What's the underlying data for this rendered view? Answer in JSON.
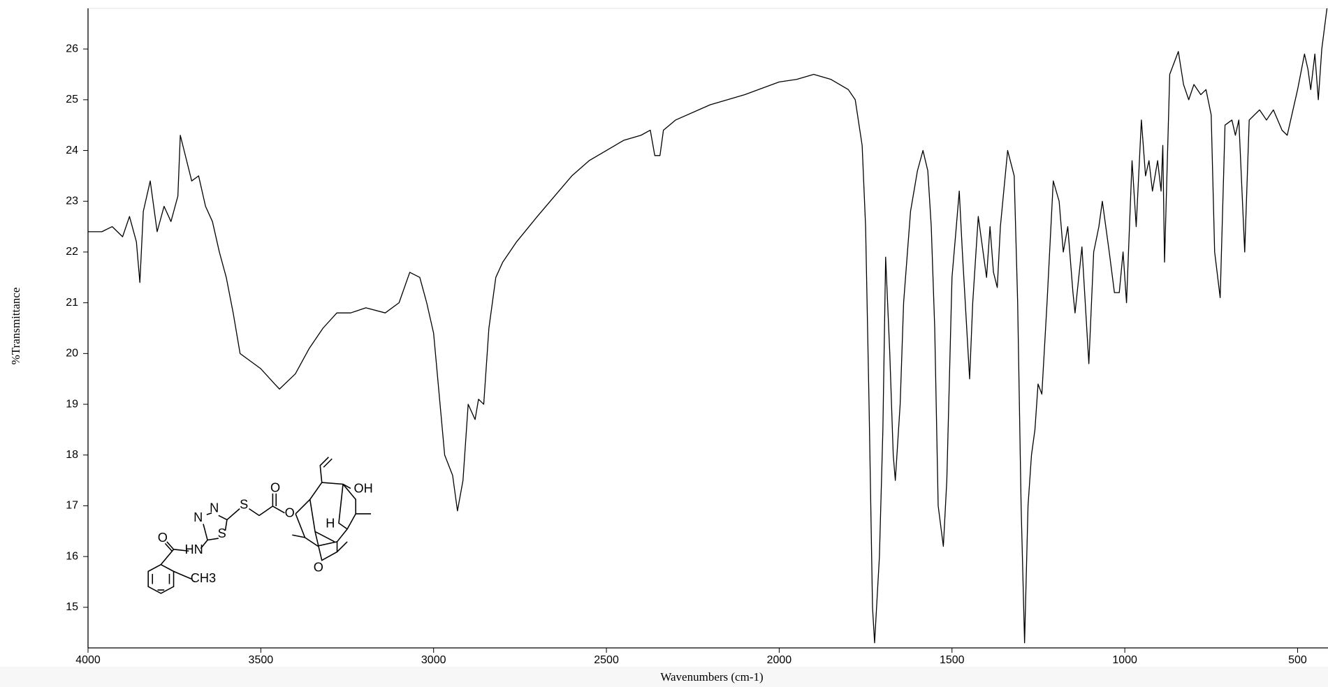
{
  "chart_data": {
    "type": "line",
    "x_label": "Wavenumbers (cm-1)",
    "y_label": "%Transmittance",
    "color": "#000000",
    "xlim": [
      4000,
      412
    ],
    "ylim": [
      14.2,
      26.8
    ],
    "xticks": [
      4000,
      3500,
      3000,
      2500,
      2000,
      1500,
      1000,
      500
    ],
    "yticks": [
      15,
      16,
      17,
      18,
      19,
      20,
      21,
      22,
      23,
      24,
      25,
      26
    ],
    "structure_labels": [
      "N",
      "N",
      "S",
      "S",
      "HN",
      "O",
      "CH3",
      "O",
      "O",
      "OH",
      "H",
      "O"
    ],
    "x": [
      4000,
      3960,
      3930,
      3900,
      3880,
      3860,
      3850,
      3840,
      3820,
      3800,
      3780,
      3760,
      3740,
      3733,
      3700,
      3680,
      3660,
      3640,
      3620,
      3600,
      3580,
      3560,
      3540,
      3500,
      3460,
      3446,
      3400,
      3360,
      3320,
      3280,
      3240,
      3196,
      3140,
      3100,
      3069,
      3040,
      3020,
      3000,
      2980,
      2968,
      2945,
      2931,
      2915,
      2900,
      2880,
      2870,
      2855,
      2840,
      2820,
      2800,
      2760,
      2700,
      2650,
      2600,
      2550,
      2500,
      2450,
      2400,
      2373,
      2360,
      2345,
      2335,
      2300,
      2200,
      2100,
      2000,
      1950,
      1900,
      1850,
      1800,
      1780,
      1760,
      1750,
      1740,
      1730,
      1724,
      1710,
      1700,
      1692,
      1680,
      1670,
      1664,
      1650,
      1640,
      1620,
      1600,
      1584,
      1570,
      1560,
      1550,
      1540,
      1525,
      1515,
      1500,
      1490,
      1479,
      1470,
      1449,
      1440,
      1424,
      1410,
      1400,
      1390,
      1380,
      1369,
      1360,
      1339,
      1320,
      1310,
      1300,
      1290,
      1280,
      1270,
      1260,
      1251,
      1240,
      1225,
      1207,
      1190,
      1178,
      1165,
      1150,
      1144,
      1124,
      1104,
      1090,
      1075,
      1065,
      1045,
      1030,
      1016,
      1005,
      995,
      979,
      967,
      952,
      940,
      930,
      920,
      905,
      895,
      890,
      885,
      870,
      845,
      830,
      815,
      800,
      780,
      765,
      750,
      740,
      724,
      710,
      690,
      680,
      670,
      653,
      640,
      610,
      590,
      570,
      545,
      530,
      500,
      480,
      470,
      462,
      450,
      440,
      430,
      415
    ],
    "values": [
      22.4,
      22.4,
      22.5,
      22.3,
      22.7,
      22.2,
      21.4,
      22.8,
      23.4,
      22.4,
      22.9,
      22.6,
      23.1,
      24.3,
      23.4,
      23.5,
      22.9,
      22.6,
      22.0,
      21.5,
      20.8,
      20.0,
      19.9,
      19.7,
      19.4,
      19.3,
      19.6,
      20.1,
      20.5,
      20.8,
      20.8,
      20.9,
      20.8,
      21.0,
      21.6,
      21.5,
      21.0,
      20.4,
      18.9,
      18.0,
      17.6,
      16.9,
      17.5,
      19.0,
      18.7,
      19.1,
      19.0,
      20.5,
      21.5,
      21.8,
      22.2,
      22.7,
      23.1,
      23.5,
      23.8,
      24.0,
      24.2,
      24.3,
      24.4,
      23.9,
      23.9,
      24.4,
      24.6,
      24.9,
      25.1,
      25.35,
      25.4,
      25.5,
      25.4,
      25.2,
      25.0,
      24.1,
      22.5,
      19.0,
      15.0,
      14.3,
      16.0,
      18.5,
      21.9,
      20.0,
      18.0,
      17.5,
      19.0,
      21.0,
      22.8,
      23.6,
      24.0,
      23.6,
      22.5,
      20.5,
      17.0,
      16.2,
      17.5,
      21.5,
      22.3,
      23.2,
      22.0,
      19.5,
      21.0,
      22.7,
      22.0,
      21.5,
      22.5,
      21.6,
      21.3,
      22.5,
      24.0,
      23.5,
      21.0,
      17.0,
      14.3,
      17.0,
      18.0,
      18.5,
      19.4,
      19.2,
      21.0,
      23.4,
      23.0,
      22.0,
      22.5,
      21.2,
      20.8,
      22.1,
      19.8,
      22.0,
      22.5,
      23.0,
      22.0,
      21.2,
      21.2,
      22.0,
      21.0,
      23.8,
      22.5,
      24.6,
      23.5,
      23.8,
      23.2,
      23.8,
      23.2,
      24.1,
      21.8,
      25.5,
      25.95,
      25.3,
      25.0,
      25.3,
      25.1,
      25.2,
      24.7,
      22.0,
      21.1,
      24.5,
      24.6,
      24.3,
      24.6,
      22.0,
      24.6,
      24.8,
      24.6,
      24.8,
      24.4,
      24.3,
      25.2,
      25.9,
      25.6,
      25.2,
      25.9,
      25.0,
      26.0,
      26.8
    ]
  }
}
